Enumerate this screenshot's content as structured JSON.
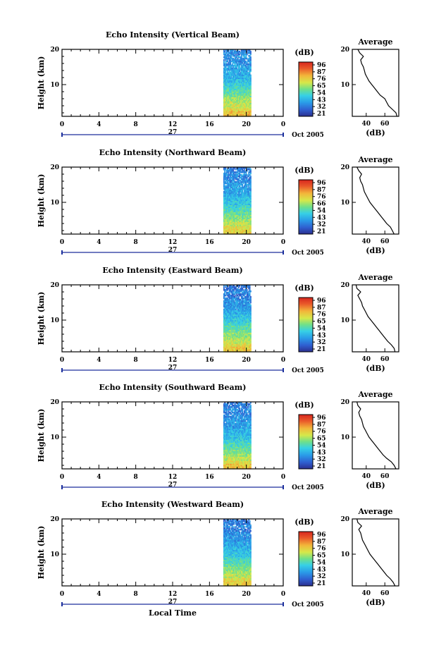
{
  "chart_data": [
    {
      "type": "heatmap",
      "title": "Echo Intensity (Vertical Beam)",
      "ylabel": "Height (km)",
      "xlim": [
        0,
        24
      ],
      "ylim": [
        1,
        20
      ],
      "x_ticks": [
        "0",
        "4",
        "8",
        "12",
        "16",
        "20",
        "0"
      ],
      "y_ticks": [
        "20",
        "10"
      ],
      "date_label": "27",
      "month_year_label": "Oct 2005",
      "data_time_range": [
        17.5,
        20.5
      ],
      "colorbar": {
        "unit_label": "(dB)",
        "ticks": [
          "96",
          "87",
          "76",
          "65",
          "54",
          "43",
          "32",
          "21"
        ]
      },
      "profile": {
        "title": "Average",
        "xlabel": "(dB)",
        "x_ticks": [
          "40",
          "60"
        ],
        "xlim": [
          25,
          75
        ],
        "heights": [
          1,
          2,
          3,
          4,
          5,
          6,
          7,
          8,
          9,
          10,
          11,
          12,
          13,
          14,
          15,
          16,
          17,
          18,
          19,
          20
        ],
        "values": [
          73,
          72,
          68,
          64,
          62,
          60,
          55,
          52,
          49,
          46,
          43,
          41,
          39,
          38,
          37,
          35,
          34,
          37,
          33,
          31
        ]
      }
    },
    {
      "type": "heatmap",
      "title": "Echo Intensity (Northward Beam)",
      "ylabel": "Height (km)",
      "xlim": [
        0,
        24
      ],
      "ylim": [
        1,
        20
      ],
      "x_ticks": [
        "0",
        "4",
        "8",
        "12",
        "16",
        "20",
        "0"
      ],
      "y_ticks": [
        "20",
        "10"
      ],
      "date_label": "27",
      "month_year_label": "Oct 2005",
      "data_time_range": [
        17.5,
        20.5
      ],
      "colorbar": {
        "unit_label": "(dB)",
        "ticks": [
          "96",
          "87",
          "76",
          "66",
          "54",
          "43",
          "32",
          "21"
        ]
      },
      "profile": {
        "title": "Average",
        "xlabel": "(dB)",
        "x_ticks": [
          "40",
          "60"
        ],
        "xlim": [
          25,
          75
        ],
        "heights": [
          1,
          2,
          3,
          4,
          5,
          6,
          7,
          8,
          9,
          10,
          11,
          12,
          13,
          14,
          15,
          16,
          17,
          18,
          19,
          20
        ],
        "values": [
          70,
          68,
          66,
          62,
          59,
          56,
          53,
          50,
          47,
          44,
          42,
          40,
          38,
          37,
          36,
          34,
          33,
          35,
          32,
          30
        ]
      }
    },
    {
      "type": "heatmap",
      "title": "Echo Intensity (Eastward Beam)",
      "ylabel": "Height (km)",
      "xlim": [
        0,
        24
      ],
      "ylim": [
        1,
        20
      ],
      "x_ticks": [
        "0",
        "4",
        "8",
        "12",
        "16",
        "20",
        "0"
      ],
      "y_ticks": [
        "20",
        "10"
      ],
      "date_label": "27",
      "month_year_label": "Oct 2005",
      "data_time_range": [
        17.5,
        20.5
      ],
      "colorbar": {
        "unit_label": "(dB)",
        "ticks": [
          "96",
          "87",
          "76",
          "65",
          "54",
          "43",
          "32",
          "21"
        ]
      },
      "profile": {
        "title": "Average",
        "xlabel": "(dB)",
        "x_ticks": [
          "40",
          "60"
        ],
        "xlim": [
          25,
          75
        ],
        "heights": [
          1,
          2,
          3,
          4,
          5,
          6,
          7,
          8,
          9,
          10,
          11,
          12,
          13,
          14,
          15,
          16,
          17,
          18,
          19,
          20
        ],
        "values": [
          71,
          70,
          67,
          63,
          60,
          57,
          54,
          51,
          48,
          45,
          42,
          40,
          38,
          36,
          35,
          33,
          31,
          34,
          30,
          29
        ]
      }
    },
    {
      "type": "heatmap",
      "title": "Echo Intensity (Southward Beam)",
      "ylabel": "Height (km)",
      "xlim": [
        0,
        24
      ],
      "ylim": [
        1,
        20
      ],
      "x_ticks": [
        "0",
        "4",
        "8",
        "12",
        "16",
        "20",
        "0"
      ],
      "y_ticks": [
        "20",
        "10"
      ],
      "date_label": "27",
      "month_year_label": "Oct 2005",
      "data_time_range": [
        17.5,
        20.5
      ],
      "colorbar": {
        "unit_label": "(dB)",
        "ticks": [
          "96",
          "87",
          "76",
          "65",
          "54",
          "43",
          "32",
          "21"
        ]
      },
      "profile": {
        "title": "Average",
        "xlabel": "(dB)",
        "x_ticks": [
          "40",
          "60"
        ],
        "xlim": [
          25,
          75
        ],
        "heights": [
          1,
          2,
          3,
          4,
          5,
          6,
          7,
          8,
          9,
          10,
          11,
          12,
          13,
          14,
          15,
          16,
          17,
          18,
          19,
          20
        ],
        "values": [
          72,
          70,
          67,
          62,
          58,
          55,
          52,
          49,
          46,
          43,
          41,
          39,
          37,
          36,
          35,
          33,
          32,
          34,
          31,
          30
        ]
      }
    },
    {
      "type": "heatmap",
      "title": "Echo Intensity (Westward Beam)",
      "ylabel": "Height (km)",
      "xlim": [
        0,
        24
      ],
      "ylim": [
        1,
        20
      ],
      "x_ticks": [
        "0",
        "4",
        "8",
        "12",
        "16",
        "20",
        "0"
      ],
      "y_ticks": [
        "20",
        "10"
      ],
      "date_label": "27",
      "month_year_label": "Oct 2005",
      "data_time_range": [
        17.5,
        20.5
      ],
      "xlabel": "Local Time",
      "colorbar": {
        "unit_label": "(dB)",
        "ticks": [
          "96",
          "87",
          "76",
          "65",
          "54",
          "43",
          "32",
          "21"
        ]
      },
      "profile": {
        "title": "Average",
        "xlabel": "(dB)",
        "x_ticks": [
          "40",
          "60"
        ],
        "xlim": [
          25,
          75
        ],
        "heights": [
          1,
          2,
          3,
          4,
          5,
          6,
          7,
          8,
          9,
          10,
          11,
          12,
          13,
          14,
          15,
          16,
          17,
          18,
          19,
          20
        ],
        "values": [
          71,
          69,
          66,
          62,
          59,
          56,
          53,
          50,
          47,
          44,
          42,
          40,
          38,
          36,
          35,
          34,
          32,
          35,
          31,
          30
        ]
      }
    }
  ],
  "colors": {
    "colormap": [
      "#2b2f8f",
      "#2f5fd0",
      "#2a9be8",
      "#36d0e6",
      "#6fe08a",
      "#d6e84a",
      "#f2b53a",
      "#ea5a2a",
      "#d7261e"
    ],
    "axis": "#000000",
    "date_marker": "#1c2f9c"
  }
}
